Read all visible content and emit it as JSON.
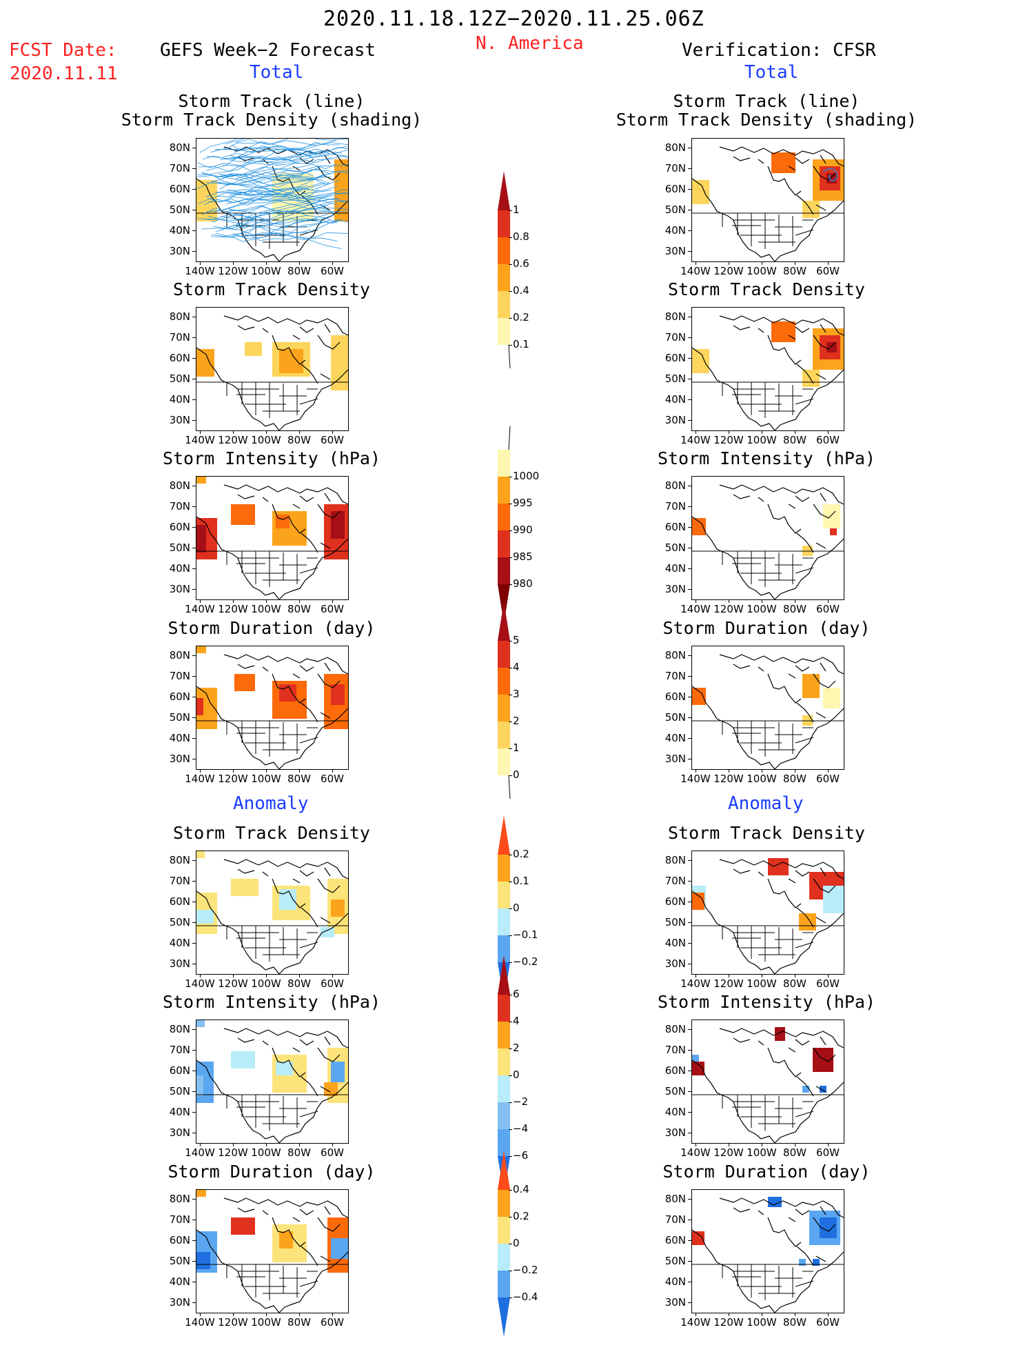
{
  "header": {
    "period": "2020.11.18.12Z−2020.11.25.06Z",
    "region": "N. America",
    "fcst_label": "FCST Date:",
    "fcst_date": "2020.11.11",
    "left_title": "GEFS Week−2 Forecast",
    "right_title": "Verification: CFSR",
    "left_section": "Total",
    "right_section": "Total",
    "anomaly_left": "Anomaly",
    "anomaly_right": "Anomaly"
  },
  "panel_titles": {
    "track_line": "Storm Track (line)",
    "track_shading": "Storm Track Density (shading)",
    "density": "Storm Track Density",
    "intensity": "Storm Intensity (hPa)",
    "duration": "Storm Duration (day)"
  },
  "axes": {
    "lat_labels": [
      "80N",
      "70N",
      "60N",
      "50N",
      "40N",
      "30N"
    ],
    "lon_labels": [
      "140W",
      "120W",
      "100W",
      "80W",
      "60W"
    ]
  },
  "colorbars": {
    "density": {
      "labels": [
        "1",
        "0.8",
        "0.6",
        "0.4",
        "0.2",
        "0.1"
      ],
      "colors": [
        "#a50f15",
        "#e0301e",
        "#fc6a0a",
        "#fca31c",
        "#fdd55c",
        "#fff6b0"
      ]
    },
    "intensity": {
      "labels": [
        "1000",
        "995",
        "990",
        "985",
        "980"
      ],
      "colors": [
        "#fff6b0",
        "#fca31c",
        "#fc6a0a",
        "#e0301e",
        "#a50f15",
        "#800000"
      ]
    },
    "duration": {
      "labels": [
        "5",
        "4",
        "3",
        "2",
        "1",
        "0"
      ],
      "colors": [
        "#a50f15",
        "#e0301e",
        "#fc6a0a",
        "#fca31c",
        "#fdd55c",
        "#fff6b0"
      ]
    },
    "anom_density": {
      "labels": [
        "0.2",
        "0.1",
        "0",
        "−0.1",
        "−0.2"
      ],
      "colors": [
        "#ff4a1a",
        "#fca31c",
        "#fde47a",
        "#b8ecf8",
        "#5aa6f0",
        "#1f6fe0"
      ]
    },
    "anom_intensity": {
      "labels": [
        "6",
        "4",
        "2",
        "0",
        "−2",
        "−4",
        "−6"
      ],
      "colors": [
        "#a50f15",
        "#e0301e",
        "#fca31c",
        "#fde47a",
        "#b8ecf8",
        "#84c0f2",
        "#5aa6f0",
        "#1f6fe0"
      ]
    },
    "anom_duration": {
      "labels": [
        "0.4",
        "0.2",
        "0",
        "−0.2",
        "−0.4"
      ],
      "colors": [
        "#ff4a1a",
        "#fca31c",
        "#fde47a",
        "#b8ecf8",
        "#5aa6f0",
        "#1f6fe0"
      ]
    }
  }
}
